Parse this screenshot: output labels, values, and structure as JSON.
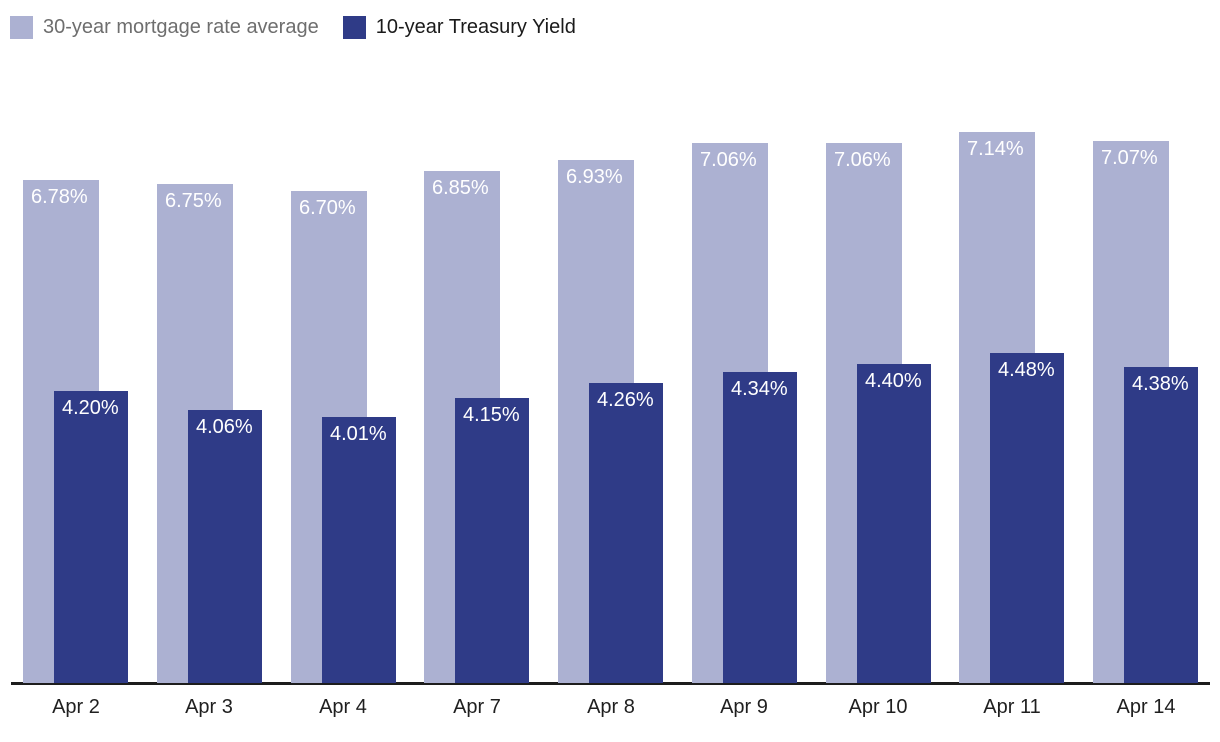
{
  "chart_data": {
    "type": "bar",
    "title": "",
    "categories": [
      "Apr 2",
      "Apr 3",
      "Apr 4",
      "Apr 7",
      "Apr 8",
      "Apr 9",
      "Apr 10",
      "Apr 11",
      "Apr 14"
    ],
    "series": [
      {
        "name": "30-year mortgage rate average",
        "color": "#acb1d2",
        "values": [
          6.78,
          6.75,
          6.7,
          6.85,
          6.93,
          7.06,
          7.06,
          7.14,
          7.07
        ],
        "labels": [
          "6.78%",
          "6.75%",
          "6.70%",
          "6.85%",
          "6.93%",
          "7.06%",
          "7.06%",
          "7.14%",
          "7.07%"
        ]
      },
      {
        "name": "10-year Treasury Yield",
        "color": "#2f3b87",
        "values": [
          4.2,
          4.06,
          4.01,
          4.15,
          4.26,
          4.34,
          4.4,
          4.48,
          4.38
        ],
        "labels": [
          "4.20%",
          "4.06%",
          "4.01%",
          "4.15%",
          "4.26%",
          "4.34%",
          "4.40%",
          "4.48%",
          "4.38%"
        ]
      }
    ],
    "value_label_color": "#ffffff",
    "x_axis_line_color": "#1d1d1d",
    "x_tick_label_color": "#1f1f1f",
    "legend_position": "top-left",
    "grid": false,
    "y_axis": "hidden"
  }
}
